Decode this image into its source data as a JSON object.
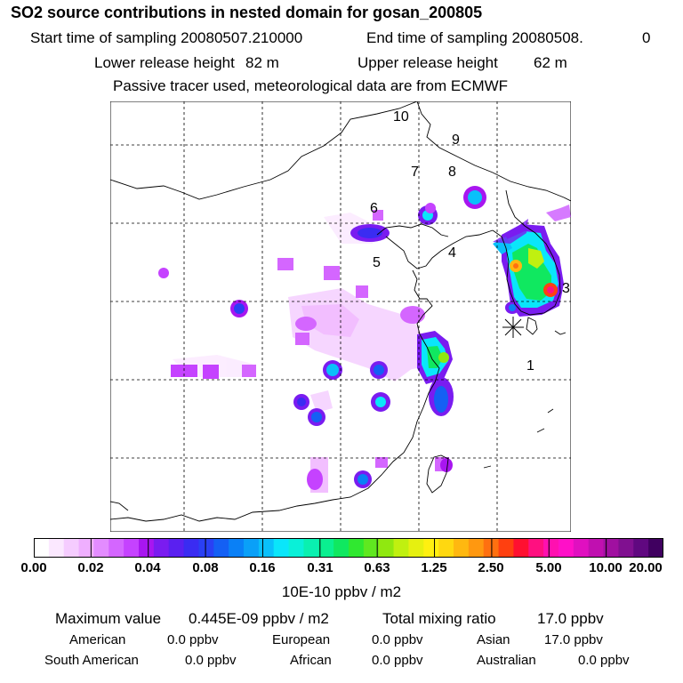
{
  "header": {
    "title": "SO2 source contributions in nested domain for gosan_200805",
    "start_label": "Start time of sampling 20080507.210000",
    "end_label": "End time of sampling 20080508.",
    "end_value": "0",
    "lower_label": "Lower release height",
    "lower_value": "82 m",
    "upper_label": "Upper release height",
    "upper_value": "62 m",
    "tracer_note": "Passive tracer used, meteorological data are from ECMWF"
  },
  "map": {
    "region_labels": [
      "1",
      "3",
      "4",
      "5",
      "6",
      "7",
      "8",
      "9",
      "10"
    ],
    "receptor_marker": "asterisk-receptor-icon"
  },
  "legend": {
    "ticks": [
      "0.00",
      "0.02",
      "0.04",
      "0.08",
      "0.16",
      "0.31",
      "0.63",
      "1.25",
      "2.50",
      "5.00",
      "10.00",
      "20.00"
    ],
    "colors": [
      "#ffffff",
      "#fbe8ff",
      "#f5ccff",
      "#efafff",
      "#e38cff",
      "#d466ff",
      "#c542ff",
      "#a816f0",
      "#7a1cf0",
      "#5a20f0",
      "#3a2cf2",
      "#2a40f4",
      "#1460f4",
      "#0a80f6",
      "#0aa0f8",
      "#0ac0fa",
      "#0ae6fa",
      "#0af0d8",
      "#0af0b0",
      "#0af090",
      "#10e860",
      "#30e830",
      "#60e820",
      "#90e810",
      "#c0f010",
      "#e6f010",
      "#fff010",
      "#ffd810",
      "#ffb810",
      "#ff9810",
      "#ff7010",
      "#ff4010",
      "#ff1030",
      "#ff1080",
      "#ff10b0",
      "#ff10c8",
      "#e010c0",
      "#c010b0",
      "#a010a0",
      "#801090",
      "#600880",
      "#400060"
    ],
    "units": "10E-10 ppbv / m2"
  },
  "summary": {
    "max_label": "Maximum value",
    "max_value": "0.445E-09 ppbv / m2",
    "total_label": "Total mixing ratio",
    "total_value": "17.0 ppbv",
    "regions": [
      {
        "name": "American",
        "value": "0.0 ppbv"
      },
      {
        "name": "European",
        "value": "0.0 ppbv"
      },
      {
        "name": "Asian",
        "value": "17.0 ppbv"
      },
      {
        "name": "South American",
        "value": "0.0 ppbv"
      },
      {
        "name": "African",
        "value": "0.0 ppbv"
      },
      {
        "name": "Australian",
        "value": "0.0 ppbv"
      }
    ]
  }
}
